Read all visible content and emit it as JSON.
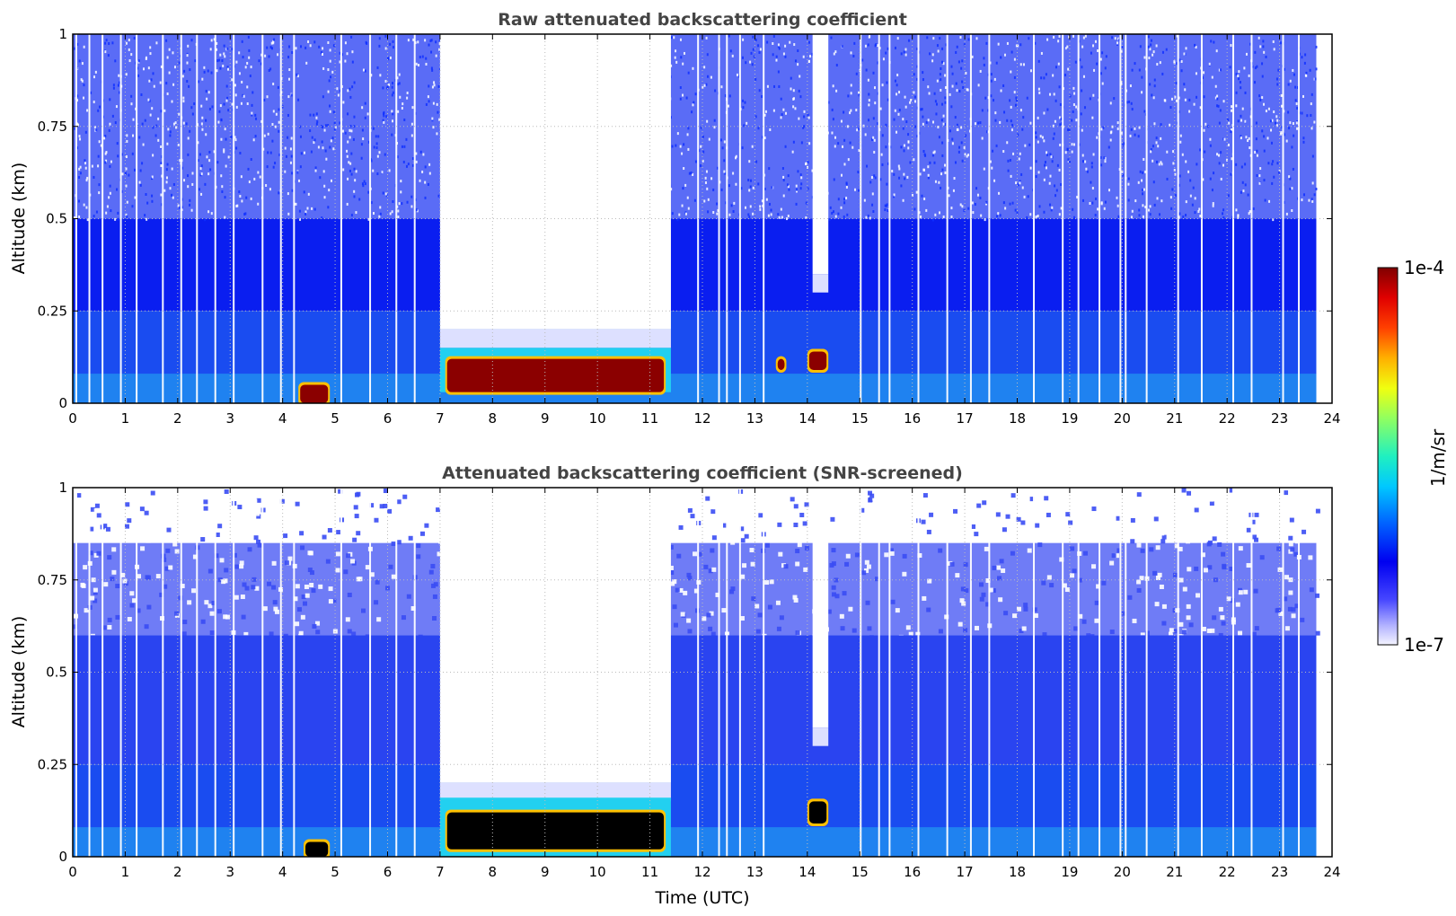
{
  "chart_data": [
    {
      "type": "heatmap",
      "title": "Raw attenuated backscattering coefficient",
      "xlabel": "",
      "ylabel": "Altitude (km)",
      "xlim": [
        0,
        24
      ],
      "ylim": [
        0,
        1
      ],
      "x_ticks": [
        "0",
        "1",
        "2",
        "3",
        "4",
        "5",
        "6",
        "7",
        "8",
        "9",
        "10",
        "11",
        "12",
        "13",
        "14",
        "15",
        "16",
        "17",
        "18",
        "19",
        "20",
        "21",
        "22",
        "23",
        "24"
      ],
      "y_ticks": [
        "0",
        "0.25",
        "0.5",
        "0.75",
        "1"
      ],
      "grid": true,
      "data_end_time": 23.7,
      "features": {
        "background_layer_top_km": 0.25,
        "noise_onset_km": 0.5,
        "low_signal_gaps": [
          {
            "start": 7.0,
            "end": 11.4,
            "clear_above_km": 0.2
          },
          {
            "start": 14.1,
            "end": 14.4,
            "clear_above_km": 0.35
          }
        ],
        "aerosol_layer": {
          "start": 7.0,
          "end": 11.4,
          "bottom_km": 0.03,
          "top_km": 0.15
        },
        "strong_returns": [
          {
            "start": 7.1,
            "end": 11.3,
            "bottom_km": 0.03,
            "top_km": 0.12
          },
          {
            "start": 14.0,
            "end": 14.4,
            "bottom_km": 0.09,
            "top_km": 0.14
          },
          {
            "start": 13.4,
            "end": 13.6,
            "bottom_km": 0.09,
            "top_km": 0.12
          },
          {
            "start": 4.3,
            "end": 4.9,
            "bottom_km": 0.0,
            "top_km": 0.05
          }
        ],
        "signal_dropouts": [
          0.05,
          0.3,
          0.55,
          0.9,
          1.2,
          1.7,
          2.05,
          2.35,
          2.7,
          3.05,
          3.6,
          3.95,
          4.2,
          5.1,
          5.65,
          6.15,
          6.5,
          11.9,
          12.3,
          12.45,
          12.7,
          13.15,
          15.0,
          15.35,
          15.55,
          16.1,
          16.65,
          17.1,
          17.45,
          18.3,
          18.85,
          19.15,
          19.55,
          19.95,
          20.05,
          20.45,
          21.05,
          21.5,
          22.1,
          22.45,
          23.05,
          23.35
        ]
      },
      "colorbar": {
        "label": "1/m/sr",
        "min": "1e-7",
        "max": "1e-4",
        "scale": "log",
        "colormap": "jet"
      }
    },
    {
      "type": "heatmap",
      "title": "Attenuated backscattering coefficient (SNR-screened)",
      "xlabel": "Time (UTC)",
      "ylabel": "Altitude (km)",
      "xlim": [
        0,
        24
      ],
      "ylim": [
        0,
        1
      ],
      "x_ticks": [
        "0",
        "1",
        "2",
        "3",
        "4",
        "5",
        "6",
        "7",
        "8",
        "9",
        "10",
        "11",
        "12",
        "13",
        "14",
        "15",
        "16",
        "17",
        "18",
        "19",
        "20",
        "21",
        "22",
        "23",
        "24"
      ],
      "y_ticks": [
        "0",
        "0.25",
        "0.5",
        "0.75",
        "1"
      ],
      "grid": true,
      "data_end_time": 23.7,
      "features": {
        "signal_top_km": 0.85,
        "background_layer_top_km": 0.25,
        "low_signal_gaps": [
          {
            "start": 7.0,
            "end": 11.4,
            "clear_above_km": 0.2
          },
          {
            "start": 14.1,
            "end": 14.4,
            "clear_above_km": 0.35
          }
        ],
        "aerosol_layer": {
          "start": 7.0,
          "end": 11.4,
          "bottom_km": 0.0,
          "top_km": 0.16
        },
        "saturated_regions": [
          {
            "start": 7.1,
            "end": 11.3,
            "bottom_km": 0.02,
            "top_km": 0.12
          },
          {
            "start": 14.0,
            "end": 14.4,
            "bottom_km": 0.09,
            "top_km": 0.15
          },
          {
            "start": 4.4,
            "end": 4.9,
            "bottom_km": 0.0,
            "top_km": 0.04
          }
        ],
        "saturated_color": "#000000"
      }
    }
  ],
  "colorbar": {
    "label": "1/m/sr",
    "max_label": "1e-4",
    "min_label": "1e-7"
  },
  "colors": {
    "title_text": "#444444",
    "grid": "#bbbbbb",
    "background_blue": "#1a4cf0",
    "noise_blue": "#0a1ef0",
    "layer_cyan": "#22d0f0",
    "strong_red": "#8b0000",
    "saturated_black": "#000000"
  }
}
